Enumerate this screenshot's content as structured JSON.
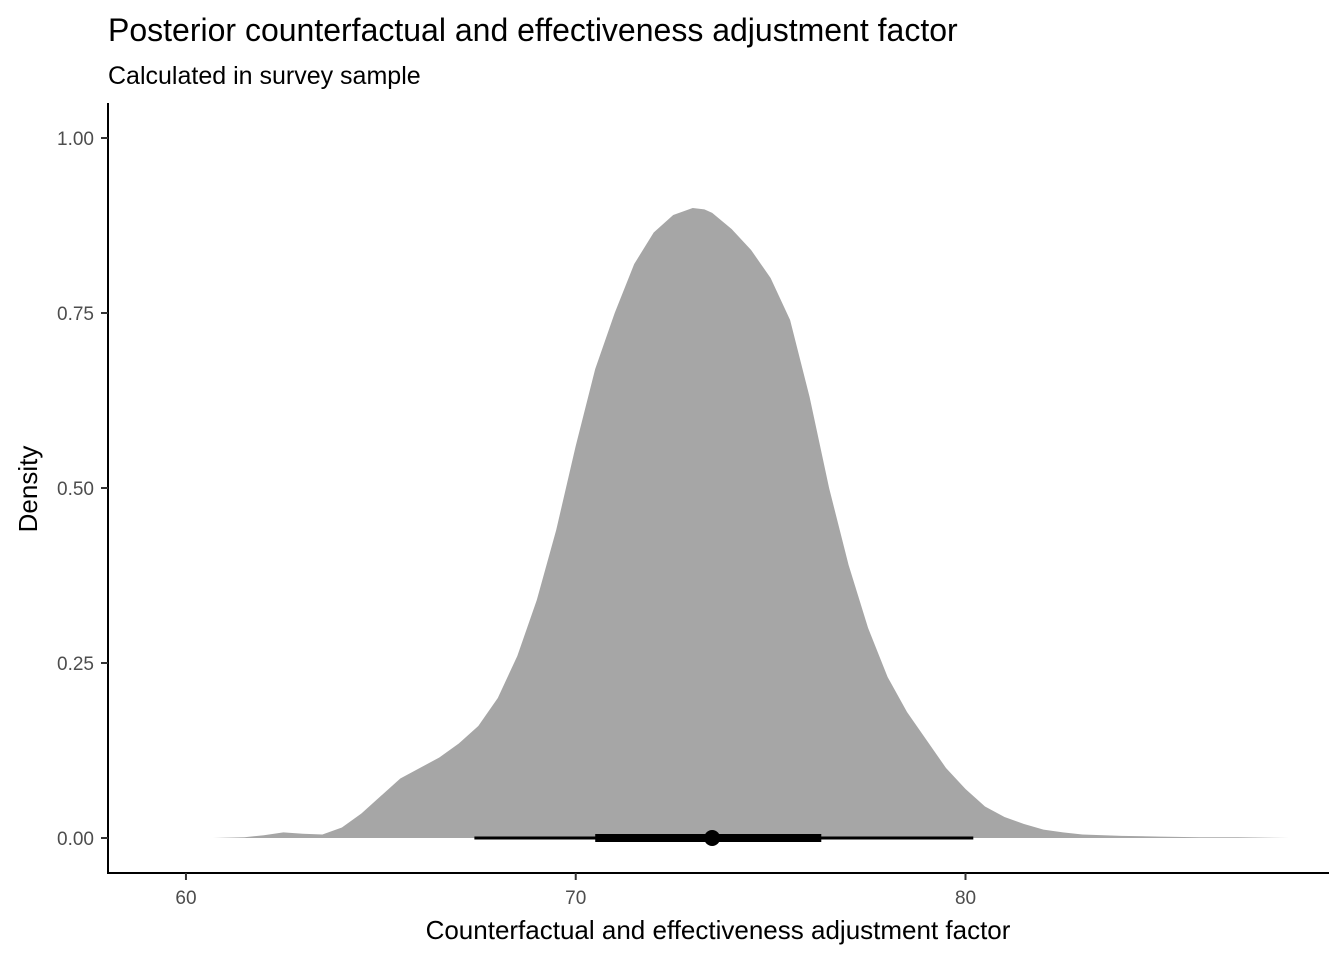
{
  "chart_data": {
    "type": "area",
    "title": "Posterior counterfactual and effectiveness adjustment factor",
    "subtitle": "Calculated in survey sample",
    "xlabel": "Counterfactual and effectiveness adjustment factor",
    "ylabel": "Density",
    "xlim": [
      58.0,
      89.3
    ],
    "ylim": [
      -0.05,
      1.05
    ],
    "x_ticks": [
      60,
      70,
      80
    ],
    "x_tick_labels": [
      "60",
      "70",
      "80"
    ],
    "y_ticks": [
      0.0,
      0.25,
      0.5,
      0.75,
      1.0
    ],
    "y_tick_labels": [
      "0.00",
      "0.25",
      "0.50",
      "0.75",
      "1.00"
    ],
    "grid": false,
    "fill_color": "#a6a6a6",
    "density_curve": {
      "x": [
        60.7,
        61.5,
        62.0,
        62.5,
        63.0,
        63.5,
        64.0,
        64.5,
        65.0,
        65.5,
        66.0,
        66.5,
        67.0,
        67.5,
        68.0,
        68.5,
        69.0,
        69.5,
        70.0,
        70.5,
        71.0,
        71.5,
        72.0,
        72.5,
        73.0,
        73.3,
        73.5,
        74.0,
        74.5,
        75.0,
        75.5,
        76.0,
        76.5,
        77.0,
        77.5,
        78.0,
        78.5,
        79.0,
        79.5,
        80.0,
        80.5,
        81.0,
        81.5,
        82.0,
        82.5,
        83.0,
        84.0,
        85.0,
        86.0,
        87.0,
        88.3
      ],
      "y": [
        0.0,
        0.001,
        0.004,
        0.008,
        0.006,
        0.005,
        0.015,
        0.035,
        0.06,
        0.085,
        0.1,
        0.115,
        0.135,
        0.16,
        0.2,
        0.26,
        0.34,
        0.44,
        0.56,
        0.67,
        0.75,
        0.82,
        0.865,
        0.89,
        0.9,
        0.898,
        0.893,
        0.87,
        0.84,
        0.8,
        0.74,
        0.63,
        0.5,
        0.39,
        0.3,
        0.23,
        0.18,
        0.14,
        0.1,
        0.07,
        0.045,
        0.03,
        0.02,
        0.012,
        0.008,
        0.005,
        0.003,
        0.002,
        0.001,
        0.001,
        0.0
      ]
    },
    "interval_summary": {
      "point_estimate": 73.5,
      "inner_interval": [
        70.5,
        76.3
      ],
      "outer_interval": [
        67.4,
        80.2
      ],
      "y": 0.0,
      "color": "#000000"
    }
  }
}
